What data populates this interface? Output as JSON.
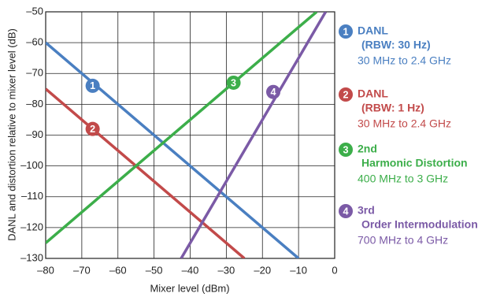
{
  "chart_data": {
    "type": "line",
    "x_label": "Mixer level (dBm)",
    "y_label": "DANL and distortion relative to mixer level (dB)",
    "xlim": [
      -80,
      0
    ],
    "ylim": [
      -130,
      -50
    ],
    "xticks": [
      {
        "value": -80,
        "label": "–80"
      },
      {
        "value": -70,
        "label": "–70"
      },
      {
        "value": -60,
        "label": "–60"
      },
      {
        "value": -50,
        "label": "–50"
      },
      {
        "value": -40,
        "label": "–40"
      },
      {
        "value": -30,
        "label": "–30"
      },
      {
        "value": -20,
        "label": "–20"
      },
      {
        "value": -10,
        "label": "–10"
      },
      0
    ],
    "yticks": [
      {
        "value": -130,
        "label": "–130"
      },
      {
        "value": -120,
        "label": "–120"
      },
      {
        "value": -110,
        "label": "–110"
      },
      {
        "value": -100,
        "label": "–100"
      },
      {
        "value": -90,
        "label": "–90"
      },
      {
        "value": -80,
        "label": "–80"
      },
      {
        "value": -70,
        "label": "–70"
      },
      {
        "value": -60,
        "label": "–60"
      },
      {
        "value": -50,
        "label": "–50"
      }
    ],
    "grid": true,
    "legend": "right",
    "series": [
      {
        "name": [
          "DANL",
          "(RBW: 30 Hz)"
        ],
        "range": "30 MHz to 2.4 GHz",
        "color": "#4a7fc1",
        "x": [
          -80,
          -10
        ],
        "values": [
          -60,
          -130
        ],
        "marker": {
          "label": "1",
          "x": -67,
          "y": -74
        }
      },
      {
        "name": [
          "DANL",
          "(RBW: 1 Hz)"
        ],
        "range": "30 MHz to 2.4 GHz",
        "color": "#c24a4a",
        "x": [
          -80,
          -25
        ],
        "values": [
          -75,
          -130
        ],
        "marker": {
          "label": "2",
          "x": -67,
          "y": -88
        }
      },
      {
        "name": [
          "2nd",
          "Harmonic Distortion"
        ],
        "range": "400 MHz to 3 GHz",
        "color": "#3cae4a",
        "x": [
          -80,
          -5
        ],
        "values": [
          -125,
          -50
        ],
        "marker": {
          "label": "3",
          "x": -28,
          "y": -73
        }
      },
      {
        "name": [
          "3rd",
          "Order Intermodulation"
        ],
        "range": "700 MHz to 4 GHz",
        "color": "#7b5aa6",
        "x": [
          -42.5,
          -2.5
        ],
        "values": [
          -130,
          -50
        ],
        "marker": {
          "label": "4",
          "x": -17,
          "y": -76
        }
      }
    ]
  }
}
